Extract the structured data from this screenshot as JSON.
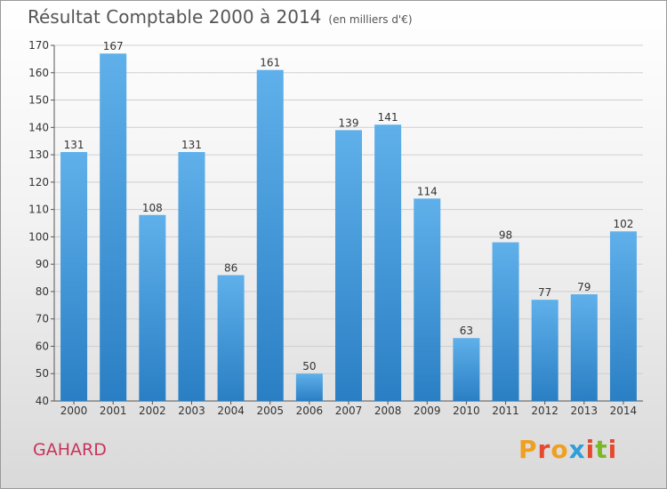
{
  "title": "Résultat Comptable 2000 à 2014",
  "subtitle": "(en milliers d'€)",
  "city": "GAHARD",
  "logo_text": "Proxiti",
  "colors": {
    "bar": "#2e8ad0",
    "bar_light": "#5fb0ea",
    "city": "#c8345a"
  },
  "chart_data": {
    "type": "bar",
    "title": "Résultat Comptable 2000 à 2014",
    "unit": "(en milliers d'€)",
    "xlabel": "",
    "ylabel": "",
    "categories": [
      "2000",
      "2001",
      "2002",
      "2003",
      "2004",
      "2005",
      "2006",
      "2007",
      "2008",
      "2009",
      "2010",
      "2011",
      "2012",
      "2013",
      "2014"
    ],
    "values": [
      131,
      167,
      108,
      131,
      86,
      161,
      50,
      139,
      141,
      114,
      63,
      98,
      77,
      79,
      102
    ],
    "ylim": [
      40,
      170
    ],
    "yticks": [
      40,
      50,
      60,
      70,
      80,
      90,
      100,
      110,
      120,
      130,
      140,
      150,
      160,
      170
    ],
    "grid": true
  }
}
